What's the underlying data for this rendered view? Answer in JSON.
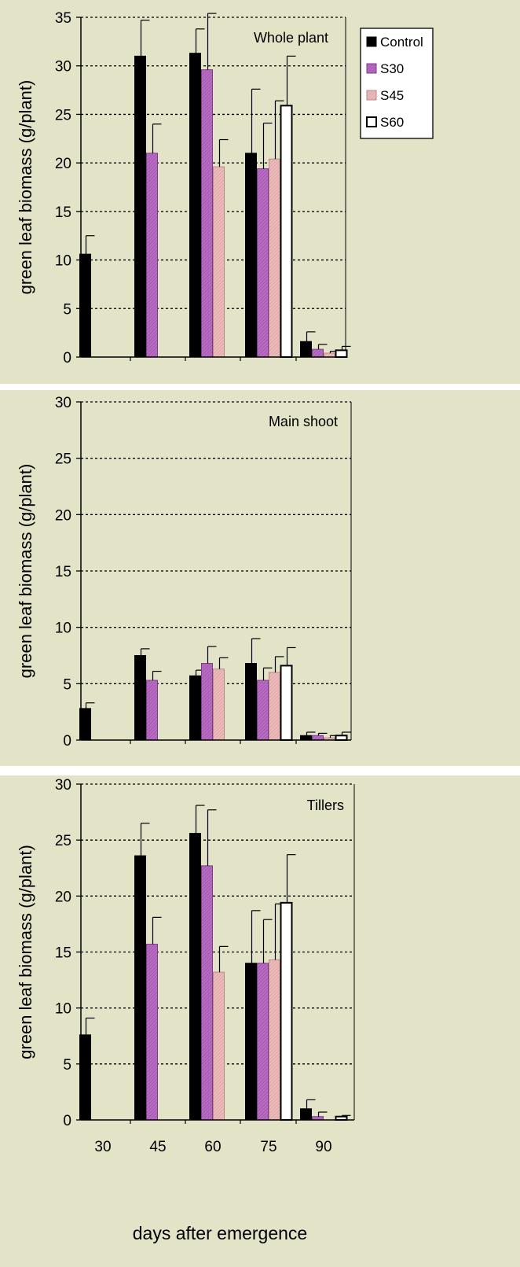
{
  "x_axis_title": "days after emergence",
  "legend": {
    "entries": [
      {
        "label": "Control",
        "fill": "#000000"
      },
      {
        "label": "S30",
        "fill": "#b96bc4"
      },
      {
        "label": "S45",
        "fill": "#ebbab9"
      },
      {
        "label": "S60",
        "fill": "#ffffff"
      }
    ]
  },
  "chart_data": [
    {
      "type": "bar",
      "title": "Whole plant",
      "ylabel": "green  leaf  biomass  (g/plant)",
      "xlabel": "",
      "categories": [
        "30",
        "45",
        "60",
        "75",
        "90"
      ],
      "ylim": [
        0,
        35
      ],
      "yticks": [
        0,
        5,
        10,
        15,
        20,
        25,
        30,
        35
      ],
      "grid": true,
      "show_xtick_labels": false,
      "legend_position": "top-right",
      "series": [
        {
          "name": "Control",
          "values": [
            10.6,
            31.0,
            31.3,
            21.0,
            1.6
          ],
          "errors": [
            1.9,
            3.7,
            2.5,
            6.6,
            1.0
          ]
        },
        {
          "name": "S30",
          "values": [
            null,
            21.0,
            29.6,
            19.4,
            0.8
          ],
          "errors": [
            null,
            3.0,
            5.8,
            4.7,
            0.5
          ]
        },
        {
          "name": "S45",
          "values": [
            null,
            null,
            19.6,
            20.4,
            0.4
          ],
          "errors": [
            null,
            null,
            2.8,
            6.0,
            0.2
          ]
        },
        {
          "name": "S60",
          "values": [
            null,
            null,
            null,
            25.9,
            0.7
          ],
          "errors": [
            null,
            null,
            null,
            5.1,
            0.4
          ]
        }
      ]
    },
    {
      "type": "bar",
      "title": "Main shoot",
      "ylabel": "green  leaf  biomass  (g/plant)",
      "xlabel": "",
      "categories": [
        "30",
        "45",
        "60",
        "75",
        "90"
      ],
      "ylim": [
        0,
        30
      ],
      "yticks": [
        0,
        5,
        10,
        15,
        20,
        25,
        30
      ],
      "grid": true,
      "show_xtick_labels": false,
      "series": [
        {
          "name": "Control",
          "values": [
            2.8,
            7.5,
            5.7,
            6.8,
            0.4
          ],
          "errors": [
            0.5,
            0.6,
            0.5,
            2.2,
            0.3
          ]
        },
        {
          "name": "S30",
          "values": [
            null,
            5.3,
            6.8,
            5.3,
            0.4
          ],
          "errors": [
            null,
            0.8,
            1.5,
            1.1,
            0.2
          ]
        },
        {
          "name": "S45",
          "values": [
            null,
            null,
            6.3,
            6.0,
            0.2
          ],
          "errors": [
            null,
            null,
            1.0,
            1.4,
            0.2
          ]
        },
        {
          "name": "S60",
          "values": [
            null,
            null,
            null,
            6.6,
            0.4
          ],
          "errors": [
            null,
            null,
            null,
            1.6,
            0.3
          ]
        }
      ]
    },
    {
      "type": "bar",
      "title": "Tillers",
      "ylabel": "green  leaf  biomass  (g/plant)",
      "xlabel": "days after emergence",
      "categories": [
        "30",
        "45",
        "60",
        "75",
        "90"
      ],
      "ylim": [
        0,
        30
      ],
      "yticks": [
        0,
        5,
        10,
        15,
        20,
        25,
        30
      ],
      "grid": true,
      "show_xtick_labels": true,
      "series": [
        {
          "name": "Control",
          "values": [
            7.6,
            23.6,
            25.6,
            14.0,
            1.0
          ],
          "errors": [
            1.5,
            2.9,
            2.5,
            4.7,
            0.8
          ]
        },
        {
          "name": "S30",
          "values": [
            null,
            15.7,
            22.7,
            14.0,
            0.3
          ],
          "errors": [
            null,
            2.4,
            5.0,
            3.9,
            0.4
          ]
        },
        {
          "name": "S45",
          "values": [
            null,
            null,
            13.2,
            14.3,
            null
          ],
          "errors": [
            null,
            null,
            2.3,
            5.0,
            null
          ]
        },
        {
          "name": "S60",
          "values": [
            null,
            null,
            null,
            19.4,
            0.3
          ],
          "errors": [
            null,
            null,
            null,
            4.3,
            0.1
          ]
        }
      ]
    }
  ]
}
